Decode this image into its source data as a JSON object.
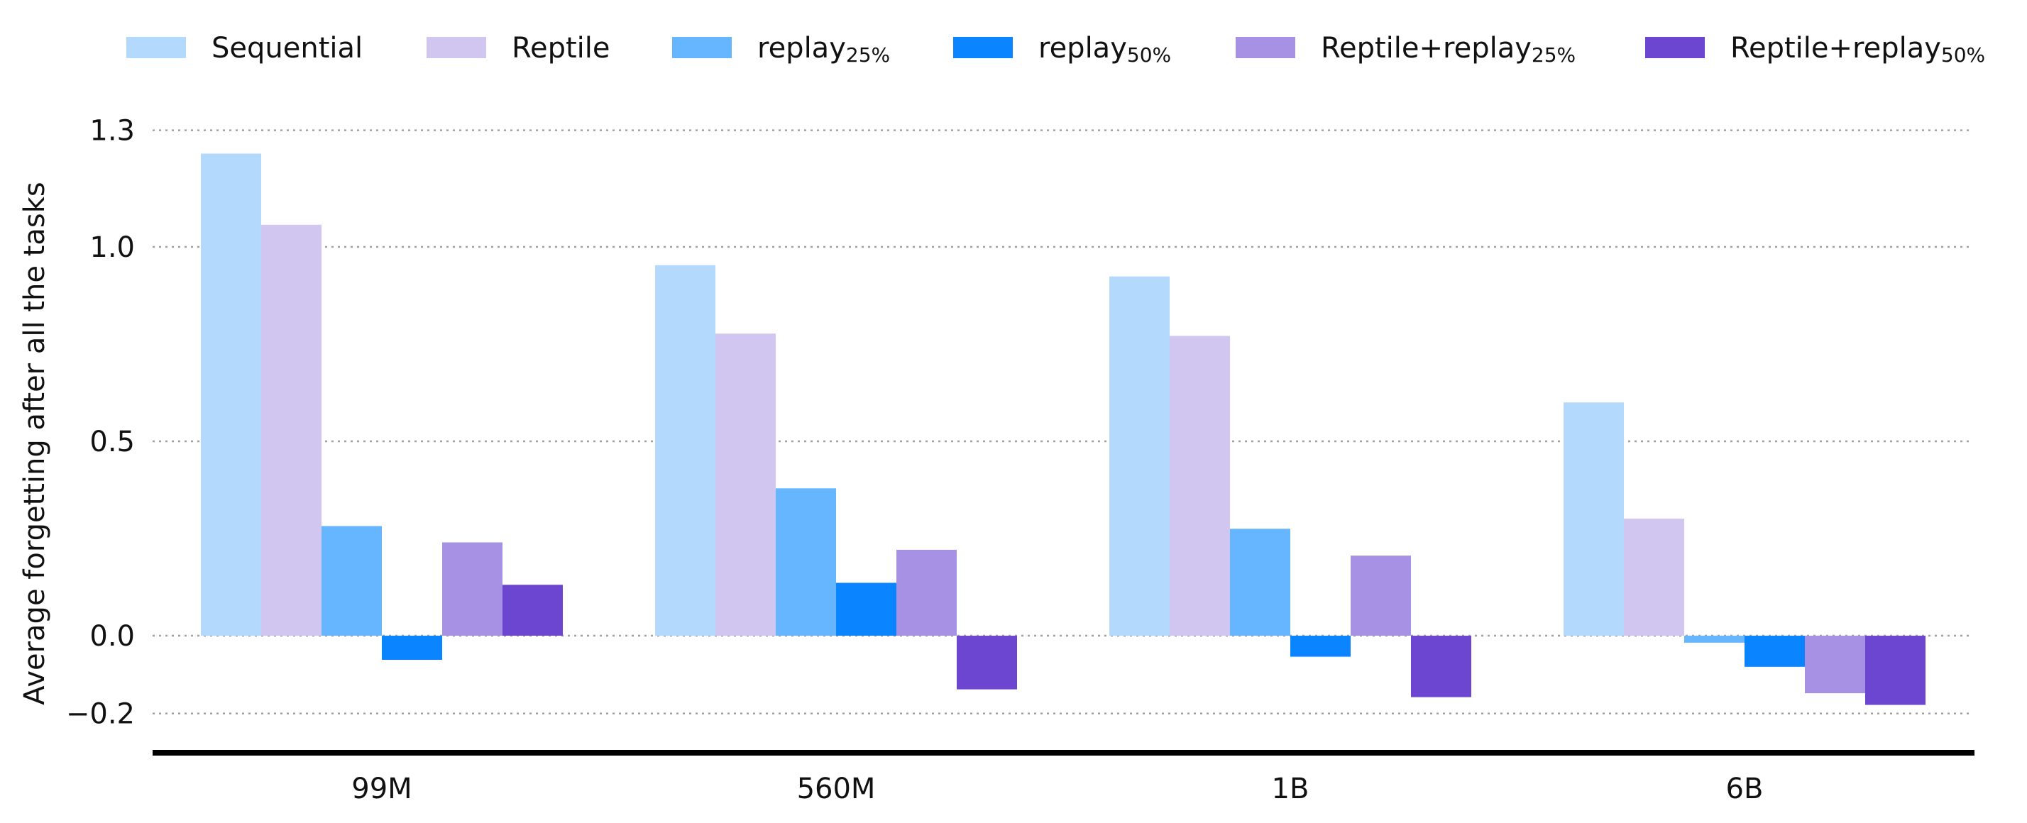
{
  "chart_data": {
    "type": "bar",
    "title": "",
    "xlabel": "",
    "ylabel": "Average forgetting after all the tasks",
    "categories": [
      "99M",
      "560M",
      "1B",
      "6B"
    ],
    "yticks": [
      {
        "value": 1.3,
        "label": "1.3"
      },
      {
        "value": 1.0,
        "label": "1.0"
      },
      {
        "value": 0.5,
        "label": "0.5"
      },
      {
        "value": 0.0,
        "label": "0.0"
      },
      {
        "value": -0.2,
        "label": "−0.2"
      }
    ],
    "ylim": [
      -0.28,
      1.38
    ],
    "grid": true,
    "legend_placement": "top",
    "series": [
      {
        "name": "Sequential",
        "name_main": "Sequential",
        "name_sub": "",
        "color": "#b3d9fd",
        "values": [
          1.24,
          0.953,
          0.924,
          0.6
        ]
      },
      {
        "name": "Reptile",
        "name_main": "Reptile",
        "name_sub": "",
        "color": "#d1c6f0",
        "values": [
          1.057,
          0.777,
          0.771,
          0.301
        ]
      },
      {
        "name": "replay25%",
        "name_main": "replay",
        "name_sub": "25%",
        "color": "#66b5ff",
        "values": [
          0.282,
          0.379,
          0.275,
          -0.018
        ]
      },
      {
        "name": "replay50%",
        "name_main": "replay",
        "name_sub": "50%",
        "color": "#0a84ff",
        "values": [
          -0.062,
          0.136,
          -0.054,
          -0.08
        ]
      },
      {
        "name": "Reptile+replay25%",
        "name_main": "Reptile+replay",
        "name_sub": "25%",
        "color": "#a791e4",
        "values": [
          0.24,
          0.221,
          0.206,
          -0.148
        ]
      },
      {
        "name": "Reptile+replay50%",
        "name_main": "Reptile+replay",
        "name_sub": "50%",
        "color": "#6c46d1",
        "values": [
          0.131,
          -0.138,
          -0.158,
          -0.178
        ]
      }
    ]
  }
}
